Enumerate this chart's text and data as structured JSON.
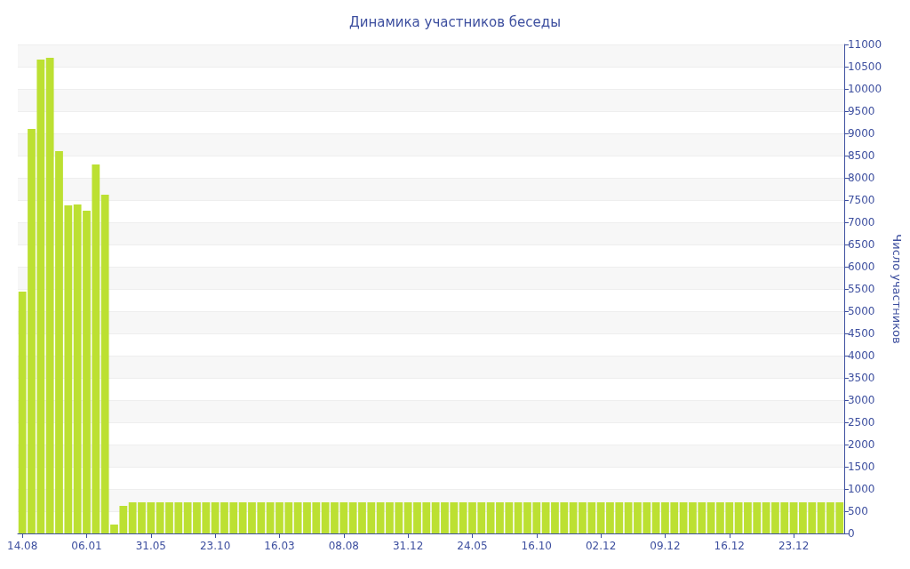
{
  "chart_data": {
    "type": "bar",
    "title": "Динамика участников беседы",
    "ylabel": "Число участников",
    "categories": [
      "14.08",
      null,
      null,
      null,
      null,
      null,
      null,
      "06.01",
      null,
      null,
      null,
      null,
      null,
      null,
      "31.05",
      null,
      null,
      null,
      null,
      null,
      null,
      "23.10",
      null,
      null,
      null,
      null,
      null,
      null,
      "16.03",
      null,
      null,
      null,
      null,
      null,
      null,
      "08.08",
      null,
      null,
      null,
      null,
      null,
      null,
      "31.12",
      null,
      null,
      null,
      null,
      null,
      null,
      "24.05",
      null,
      null,
      null,
      null,
      null,
      null,
      "16.10",
      null,
      null,
      null,
      null,
      null,
      null,
      "02.12",
      null,
      null,
      null,
      null,
      null,
      null,
      "09.12",
      null,
      null,
      null,
      null,
      null,
      null,
      "16.12",
      null,
      null,
      null,
      null,
      null,
      null,
      "23.12",
      null,
      null,
      null,
      null,
      null
    ],
    "values": [
      5440,
      9100,
      10660,
      10700,
      8600,
      7380,
      7400,
      7260,
      8300,
      7620,
      200,
      620,
      700,
      700,
      700,
      700,
      700,
      700,
      700,
      700,
      700,
      700,
      700,
      700,
      700,
      700,
      700,
      700,
      700,
      700,
      700,
      700,
      700,
      700,
      700,
      700,
      700,
      700,
      700,
      700,
      700,
      700,
      700,
      700,
      700,
      700,
      700,
      700,
      700,
      700,
      700,
      700,
      700,
      700,
      700,
      700,
      700,
      700,
      700,
      700,
      700,
      700,
      700,
      700,
      700,
      700,
      700,
      700,
      700,
      700,
      700,
      700,
      700,
      700,
      700,
      700,
      700,
      700,
      700,
      700,
      700,
      700,
      700,
      700,
      700,
      700,
      700,
      700,
      700,
      700
    ],
    "color": "#bce032",
    "ylim": [
      0,
      11000
    ],
    "yticks": [
      0,
      500,
      1000,
      1500,
      2000,
      2500,
      3000,
      3500,
      4000,
      4500,
      5000,
      5500,
      6000,
      6500,
      7000,
      7500,
      8000,
      8500,
      9000,
      9500,
      10000,
      10500,
      11000
    ],
    "grid": "y"
  }
}
